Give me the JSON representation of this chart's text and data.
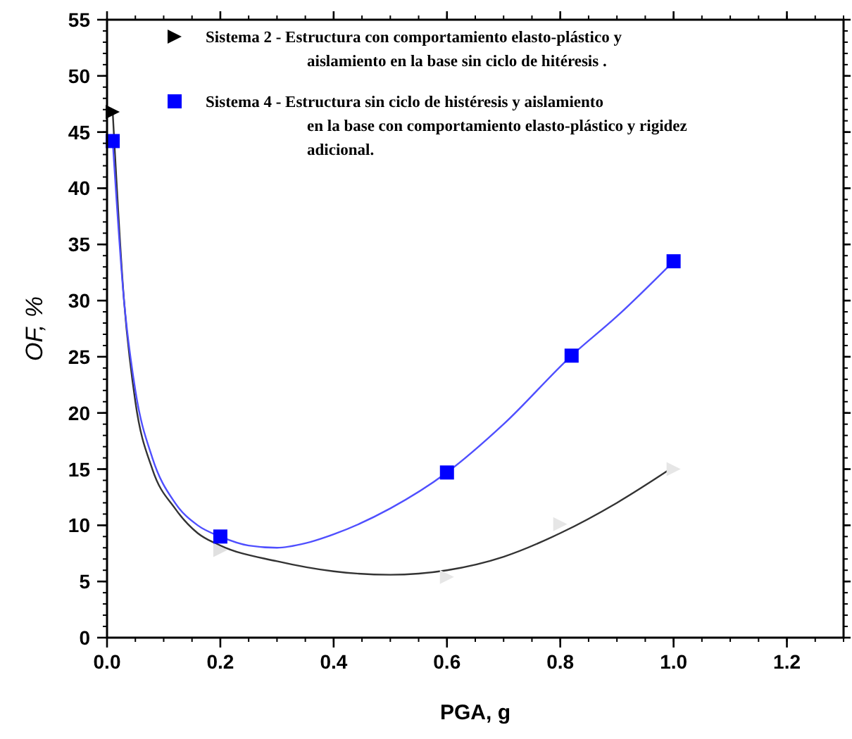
{
  "chart_data": {
    "type": "scatter",
    "xlabel": "PGA, g",
    "ylabel": "OF, %",
    "xlim": [
      0,
      1.3
    ],
    "ylim": [
      0,
      55
    ],
    "xticks": [
      {
        "value": 0,
        "label": "0.0"
      },
      {
        "value": 0.2,
        "label": "0.2"
      },
      {
        "value": 0.4,
        "label": "0.4"
      },
      {
        "value": 0.6,
        "label": "0.6"
      },
      {
        "value": 0.8,
        "label": "0.8"
      },
      {
        "value": 1,
        "label": "1.0"
      },
      {
        "value": 1.2,
        "label": "1.2"
      }
    ],
    "yticks": [
      0,
      5,
      10,
      15,
      20,
      25,
      30,
      35,
      40,
      45,
      50,
      55
    ],
    "grid": false,
    "legend": "top",
    "series": [
      {
        "type": "line",
        "color": "#333333",
        "marker": "none",
        "x": [
          0.01,
          0.03,
          0.05,
          0.08,
          0.12,
          0.16,
          0.2,
          0.3,
          0.4,
          0.5,
          0.6,
          0.7,
          0.8,
          0.9,
          1.0
        ],
        "values": [
          46.8,
          30,
          21,
          15,
          11.5,
          9.3,
          8.2,
          6.8,
          5.9,
          5.6,
          6.0,
          7.2,
          9.3,
          12,
          15.2
        ]
      },
      {
        "type": "line",
        "color": "#4f4fff",
        "marker": "none",
        "x": [
          0.01,
          0.03,
          0.05,
          0.08,
          0.12,
          0.16,
          0.2,
          0.25,
          0.3,
          0.35,
          0.4,
          0.5,
          0.6,
          0.7,
          0.82,
          0.9,
          1.0
        ],
        "values": [
          44.2,
          30,
          22,
          16,
          12,
          10,
          9,
          8.2,
          8,
          8.4,
          9.2,
          11.5,
          14.7,
          19,
          25.1,
          28.6,
          33.5
        ]
      },
      {
        "name": "Sistema 2  - Estructura con comportamiento elasto-plástico y aislamiento en la base sin ciclo de hitéresis .",
        "color": "#000000",
        "marker": "triangle",
        "colors": [
          "#000000",
          "#e0e0e0",
          "#e6e6e6",
          "#e6e6e6",
          "#e6e6e6"
        ],
        "x": [
          0.01,
          0.2,
          0.6,
          0.8,
          1.0
        ],
        "values": [
          46.8,
          7.8,
          5.4,
          10.1,
          15
        ]
      },
      {
        "name": "Sistema 4  - Estructura sin ciclo de histéresis y aislamiento en la base con comportamiento elasto-plástico y rigidez adicional.",
        "color": "#0000ff",
        "marker": "square",
        "x": [
          0.01,
          0.2,
          0.6,
          0.82,
          1.0
        ],
        "values": [
          44.2,
          9.0,
          14.7,
          25.1,
          33.5
        ]
      }
    ]
  }
}
